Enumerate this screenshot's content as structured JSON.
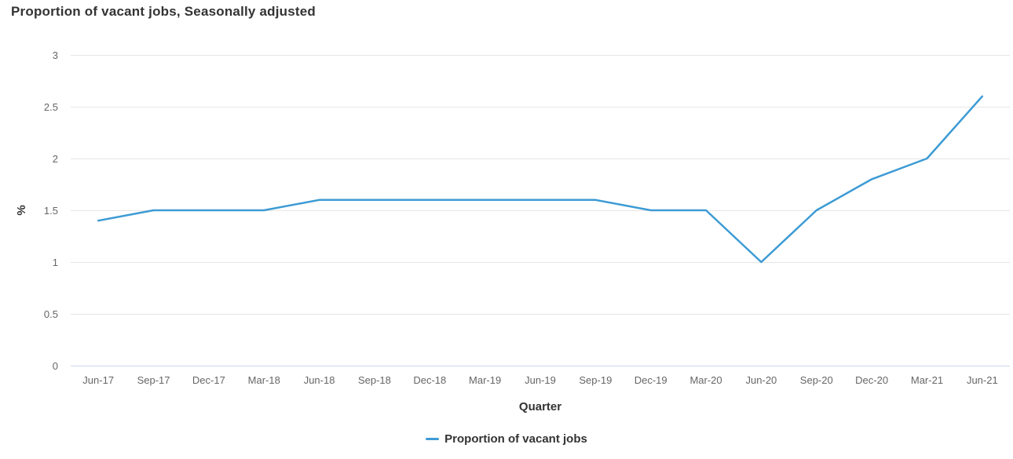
{
  "chart_data": {
    "type": "line",
    "title": "Proportion of vacant jobs, Seasonally adjusted",
    "xlabel": "Quarter",
    "ylabel": "%",
    "categories": [
      "Jun-17",
      "Sep-17",
      "Dec-17",
      "Mar-18",
      "Jun-18",
      "Sep-18",
      "Dec-18",
      "Mar-19",
      "Jun-19",
      "Sep-19",
      "Dec-19",
      "Mar-20",
      "Jun-20",
      "Sep-20",
      "Dec-20",
      "Mar-21",
      "Jun-21"
    ],
    "series": [
      {
        "name": "Proportion of vacant jobs",
        "color": "#3d9bd4",
        "values": [
          1.4,
          1.5,
          1.5,
          1.5,
          1.6,
          1.6,
          1.6,
          1.6,
          1.6,
          1.6,
          1.5,
          1.5,
          1.0,
          1.5,
          1.8,
          2.0,
          2.6
        ]
      }
    ],
    "ylim": [
      0,
      3
    ],
    "ytick_interval": 0.5,
    "yticks": [
      "0",
      "0.5",
      "1",
      "1.5",
      "2",
      "2.5",
      "3"
    ],
    "grid": "horizontal-only",
    "legend_position": "bottom-center"
  },
  "colors": {
    "series_line": "#3d9bd4",
    "gridline": "#e6e6e6",
    "baseline_axis": "#ccd6eb",
    "tick_label": "#666666",
    "title_text": "#333333",
    "background": "#ffffff"
  }
}
